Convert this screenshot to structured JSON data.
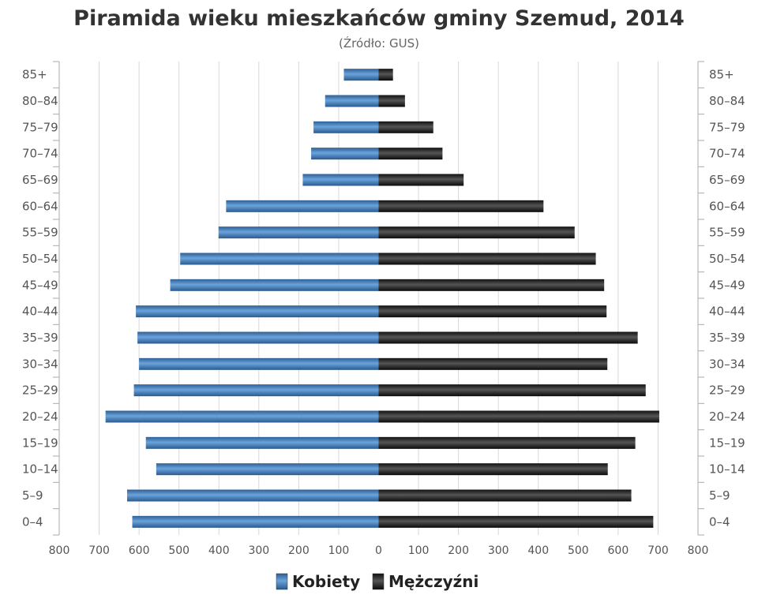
{
  "chart_data": {
    "type": "bar",
    "orientation": "horizontal-pyramid",
    "title": "Piramida wieku mieszkańców gminy Szemud, 2014",
    "subtitle": "(Źródło: GUS)",
    "categories": [
      "0–4",
      "5–9",
      "10–14",
      "15–19",
      "20–24",
      "25–29",
      "30–34",
      "35–39",
      "40–44",
      "45–49",
      "50–54",
      "55–59",
      "60–64",
      "65–69",
      "70–74",
      "75–79",
      "80–84",
      "85+"
    ],
    "series": [
      {
        "name": "Kobiety",
        "color": "#3a7bbf",
        "side": "left",
        "values": [
          617,
          630,
          557,
          583,
          684,
          613,
          600,
          604,
          608,
          522,
          497,
          401,
          382,
          190,
          169,
          163,
          134,
          87
        ]
      },
      {
        "name": "Mężczyźni",
        "color": "#1a1a1a",
        "side": "right",
        "values": [
          688,
          633,
          574,
          643,
          703,
          669,
          573,
          649,
          571,
          565,
          544,
          491,
          413,
          213,
          160,
          137,
          66,
          36
        ]
      }
    ],
    "xlim": [
      -800,
      800
    ],
    "x_ticks": [
      -800,
      -700,
      -600,
      -500,
      -400,
      -300,
      -200,
      -100,
      0,
      100,
      200,
      300,
      400,
      500,
      600,
      700,
      800
    ],
    "x_tick_labels": [
      "800",
      "700",
      "600",
      "500",
      "400",
      "300",
      "200",
      "100",
      "0",
      "100",
      "200",
      "300",
      "400",
      "500",
      "600",
      "700",
      "800"
    ],
    "grid": true,
    "legend_position": "bottom-center"
  }
}
